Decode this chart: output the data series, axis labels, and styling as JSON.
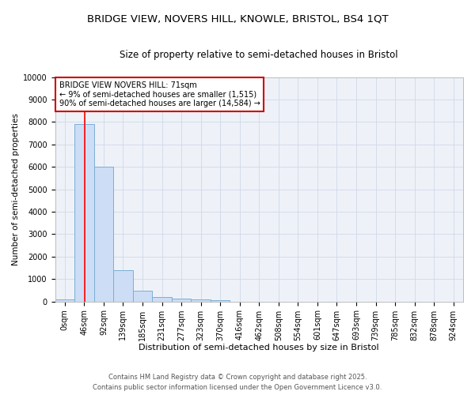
{
  "title1": "BRIDGE VIEW, NOVERS HILL, KNOWLE, BRISTOL, BS4 1QT",
  "title2": "Size of property relative to semi-detached houses in Bristol",
  "xlabel": "Distribution of semi-detached houses by size in Bristol",
  "ylabel": "Number of semi-detached properties",
  "categories": [
    "0sqm",
    "46sqm",
    "92sqm",
    "139sqm",
    "185sqm",
    "231sqm",
    "277sqm",
    "323sqm",
    "370sqm",
    "416sqm",
    "462sqm",
    "508sqm",
    "554sqm",
    "601sqm",
    "647sqm",
    "693sqm",
    "739sqm",
    "785sqm",
    "832sqm",
    "878sqm",
    "924sqm"
  ],
  "values": [
    100,
    7900,
    6000,
    1400,
    490,
    210,
    120,
    75,
    45,
    0,
    0,
    0,
    0,
    0,
    0,
    0,
    0,
    0,
    0,
    0,
    0
  ],
  "bar_color": "#ccddf5",
  "bar_edge_color": "#7bafd4",
  "grid_color": "#d0d8e8",
  "bg_color": "#ffffff",
  "plot_bg_color": "#eef2f8",
  "annotation_title": "BRIDGE VIEW NOVERS HILL: 71sqm",
  "annotation_line1": "← 9% of semi-detached houses are smaller (1,515)",
  "annotation_line2": "90% of semi-detached houses are larger (14,584) →",
  "annotation_box_color": "#ffffff",
  "annotation_border_color": "#cc0000",
  "footer1": "Contains HM Land Registry data © Crown copyright and database right 2025.",
  "footer2": "Contains public sector information licensed under the Open Government Licence v3.0.",
  "ylim": [
    0,
    10000
  ],
  "yticks": [
    0,
    1000,
    2000,
    3000,
    4000,
    5000,
    6000,
    7000,
    8000,
    9000,
    10000
  ],
  "title1_fontsize": 9.5,
  "title2_fontsize": 8.5,
  "xlabel_fontsize": 8,
  "ylabel_fontsize": 7.5,
  "tick_fontsize": 7,
  "annotation_fontsize": 7,
  "footer_fontsize": 6
}
